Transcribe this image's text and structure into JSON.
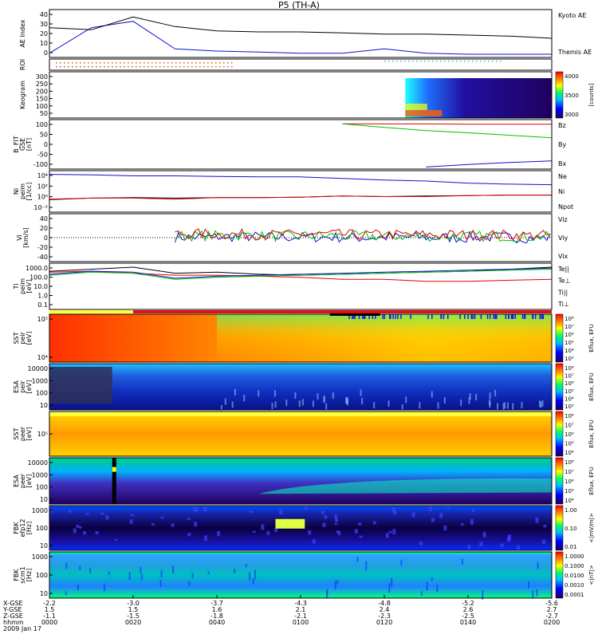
{
  "figure": {
    "title": "P5 (TH-A)",
    "date_label": "2009 Jan 17"
  },
  "colors": {
    "blue": "#1010d0",
    "red": "#e00000",
    "green": "#00c000",
    "black": "#000000"
  },
  "panels": [
    {
      "key": "ae",
      "ylabel": [
        "AE Index"
      ],
      "ticks": [
        "40",
        "30",
        "20",
        "10",
        "0"
      ],
      "yrange": [
        0,
        45
      ],
      "right_labels": [
        {
          "text": "Kyoto AE",
          "color": "#1010d0"
        },
        {
          "text": "Themis AE",
          "color": "#000000"
        }
      ]
    },
    {
      "key": "roi",
      "ylabel": [
        "ROI"
      ],
      "ticks": [],
      "right_labels": []
    },
    {
      "key": "keogram",
      "ylabel": [
        "Keogram"
      ],
      "ticks": [
        "300",
        "250",
        "200",
        "150",
        "100",
        "50"
      ],
      "yrange": [
        20,
        310
      ],
      "colorbar": {
        "ticks": [
          "4000",
          "3500",
          "3000"
        ],
        "label": "[counts]"
      }
    },
    {
      "key": "bfit",
      "ylabel": [
        "B_FIT",
        "GSE",
        "[nT]"
      ],
      "ticks": [
        "100",
        "50",
        "0",
        "-50",
        "-100"
      ],
      "yrange": [
        -120,
        120
      ],
      "right_labels": [
        {
          "text": "Bz",
          "color": "#e00000"
        },
        {
          "text": "By",
          "color": "#00c000"
        },
        {
          "text": "Bx",
          "color": "#1010d0"
        }
      ]
    },
    {
      "key": "ni",
      "ylabel": [
        "Ni",
        "peim",
        "[1/cc]"
      ],
      "ticks": [
        "10⁴",
        "10²",
        "10⁰",
        "10⁻²"
      ],
      "yrange": [
        -3,
        5
      ],
      "right_labels": [
        {
          "text": "Ne",
          "color": "#e00000"
        },
        {
          "text": "Ni",
          "color": "#000000"
        },
        {
          "text": "Npot",
          "color": "#1010d0"
        }
      ]
    },
    {
      "key": "vi",
      "ylabel": [
        "Vi",
        "[km/s]"
      ],
      "ticks": [
        "40",
        "20",
        "0",
        "-20",
        "-40"
      ],
      "yrange": [
        -50,
        50
      ],
      "right_labels": [
        {
          "text": "Viz",
          "color": "#e00000"
        },
        {
          "text": "Viy",
          "color": "#00c000"
        },
        {
          "text": "Vix",
          "color": "#1010d0"
        }
      ]
    },
    {
      "key": "ti",
      "ylabel": [
        "Ti",
        "peim",
        "[eV]"
      ],
      "ticks": [
        "1000.0",
        "100.0",
        "10.0",
        "1.0",
        "0.1"
      ],
      "yrange": [
        -1.2,
        3.4
      ],
      "right_labels": [
        {
          "text": "Te||",
          "color": "#000000"
        },
        {
          "text": "Te⊥",
          "color": "#e00000"
        },
        {
          "text": "Ti||",
          "color": "#00c000"
        },
        {
          "text": "Ti⊥",
          "color": "#1010d0"
        }
      ]
    },
    {
      "key": "sst1",
      "ylabel": [
        "SST",
        "peir",
        "[eV]"
      ],
      "ticks": [
        "10⁵",
        "10⁴"
      ],
      "colorbar": {
        "ticks": [
          "10⁸",
          "10⁷",
          "10⁶",
          "10⁵",
          "10⁴",
          "10³"
        ],
        "label": "Eflux, EFU"
      }
    },
    {
      "key": "esa1",
      "ylabel": [
        "ESA",
        "peir",
        "[eV]"
      ],
      "ticks": [
        "10000",
        "1000",
        "100",
        "10"
      ],
      "colorbar": {
        "ticks": [
          "10⁸",
          "10⁷",
          "10⁶",
          "10⁵",
          "10⁴",
          "10³"
        ],
        "label": "Eflux, EFU"
      }
    },
    {
      "key": "sst2",
      "ylabel": [
        "SST",
        "peer",
        "[eV]"
      ],
      "ticks": [
        "10⁵"
      ],
      "colorbar": {
        "ticks": [
          "10⁸",
          "10⁷",
          "10⁶",
          "10⁵",
          "10⁴"
        ],
        "label": "Eflux, EFU"
      }
    },
    {
      "key": "esa2",
      "ylabel": [
        "ESA",
        "peer",
        "[eV]"
      ],
      "ticks": [
        "10000",
        "1000",
        "100",
        "10"
      ],
      "colorbar": {
        "ticks": [
          "10⁸",
          "10⁷",
          "10⁶",
          "10⁵",
          "10⁴"
        ],
        "label": "Eflux, EFU"
      }
    },
    {
      "key": "fbk1",
      "ylabel": [
        "FBK",
        "efp12",
        "[Hz]"
      ],
      "ticks": [
        "1000",
        "100",
        "10"
      ],
      "colorbar": {
        "ticks": [
          "1.00",
          "0.10",
          "0.01"
        ],
        "label": "<|mV/m|>"
      }
    },
    {
      "key": "fbk2",
      "ylabel": [
        "FBK",
        "scm1",
        "[Hz]"
      ],
      "ticks": [
        "1000",
        "100",
        "10"
      ],
      "colorbar": {
        "ticks": [
          "1.0000",
          "0.1000",
          "0.0100",
          "0.0010",
          "0.0001"
        ],
        "label": "<|nT|>"
      }
    }
  ],
  "xaxis": {
    "row_labels": [
      "X-GSE",
      "Y-GSE",
      "Z-GSE",
      "hhmm"
    ],
    "columns": [
      {
        "vals": [
          "-2.2",
          "1.5",
          "-1.1",
          "0000"
        ]
      },
      {
        "vals": [
          "-3.0",
          "1.5",
          "-1.5",
          "0020"
        ]
      },
      {
        "vals": [
          "-3.7",
          "1.6",
          "-1.8",
          "0040"
        ]
      },
      {
        "vals": [
          "-4.3",
          "2.1",
          "-2.1",
          "0100"
        ]
      },
      {
        "vals": [
          "-4.8",
          "2.4",
          "-2.3",
          "0120"
        ]
      },
      {
        "vals": [
          "-5.2",
          "2.6",
          "-2.5",
          "0140"
        ]
      },
      {
        "vals": [
          "-5.6",
          "2.7",
          "-2.7",
          "0200"
        ]
      }
    ]
  },
  "chart_data": {
    "type": "line",
    "title": "P5 (TH-A)",
    "x": [
      0,
      10,
      20,
      30,
      40,
      50,
      60,
      70,
      80,
      90,
      100,
      110,
      120
    ],
    "x_tick_labels": [
      "0000",
      "0020",
      "0040",
      "0100",
      "0120",
      "0140",
      "0200"
    ],
    "series": [
      {
        "name": "Kyoto AE",
        "panel": "ae",
        "values": [
          4,
          28,
          34,
          8,
          6,
          5,
          4,
          4,
          8,
          4,
          3,
          3,
          3
        ]
      },
      {
        "name": "Themis AE",
        "panel": "ae",
        "values": [
          28,
          26,
          38,
          29,
          25,
          24,
          24,
          23,
          22,
          22,
          21,
          20,
          18
        ]
      },
      {
        "name": "Bz",
        "panel": "bfit",
        "values": [
          null,
          null,
          null,
          null,
          null,
          null,
          null,
          100,
          99,
          99,
          98,
          98,
          98
        ]
      },
      {
        "name": "By",
        "panel": "bfit",
        "values": [
          null,
          null,
          null,
          null,
          null,
          null,
          null,
          100,
          82,
          67,
          56,
          44,
          32
        ]
      },
      {
        "name": "Bx",
        "panel": "bfit",
        "values": [
          null,
          null,
          null,
          null,
          null,
          null,
          null,
          null,
          null,
          -110,
          -98,
          -88,
          -80
        ]
      },
      {
        "name": "Npot",
        "panel": "ni",
        "values": [
          4.3,
          4.2,
          4.0,
          4.0,
          3.9,
          3.8,
          3.8,
          3.5,
          3.2,
          3.0,
          2.6,
          2.4,
          2.3
        ]
      },
      {
        "name": "Ni",
        "panel": "ni",
        "values": [
          -0.6,
          -0.3,
          -0.2,
          -0.3,
          -0.2,
          -0.2,
          -0.1,
          0.1,
          0.0,
          0.1,
          0.2,
          0.3,
          0.3
        ]
      },
      {
        "name": "Ne",
        "panel": "ni",
        "values": [
          -0.5,
          -0.3,
          -0.3,
          -0.5,
          -0.2,
          -0.2,
          -0.1,
          0.1,
          0.0,
          0.0,
          0.2,
          0.3,
          0.3
        ]
      },
      {
        "name": "Viz",
        "panel": "vi",
        "values": [
          null,
          null,
          null,
          8,
          7,
          6,
          7,
          6,
          6,
          6,
          6,
          5,
          6
        ]
      },
      {
        "name": "Viy",
        "panel": "vi",
        "values": [
          null,
          null,
          null,
          4,
          5,
          3,
          4,
          3,
          3,
          3,
          3,
          2,
          3
        ]
      },
      {
        "name": "Vix",
        "panel": "vi",
        "values": [
          null,
          null,
          null,
          1,
          2,
          1,
          1,
          0,
          1,
          0,
          1,
          0,
          1
        ]
      },
      {
        "name": "Te||",
        "panel": "ti",
        "values": [
          2.6,
          2.8,
          3.0,
          2.4,
          2.5,
          2.3,
          2.2,
          2.3,
          2.4,
          2.5,
          2.6,
          2.8,
          3.0
        ]
      },
      {
        "name": "Te⊥",
        "panel": "ti",
        "values": [
          2.5,
          2.6,
          2.4,
          2.2,
          2.2,
          2.1,
          2.0,
          1.8,
          1.8,
          1.6,
          1.6,
          1.7,
          1.8
        ]
      },
      {
        "name": "Ti||",
        "panel": "ti",
        "values": [
          2.2,
          2.5,
          2.4,
          1.8,
          2.0,
          2.1,
          2.2,
          2.3,
          2.4,
          2.5,
          2.6,
          2.7,
          2.8
        ]
      },
      {
        "name": "Ti⊥",
        "panel": "ti",
        "values": [
          2.3,
          2.6,
          2.5,
          1.9,
          2.1,
          2.2,
          2.3,
          2.4,
          2.5,
          2.6,
          2.7,
          2.8,
          2.9
        ]
      }
    ],
    "ylim": {
      "ae": [
        0,
        45
      ],
      "bfit": [
        -120,
        120
      ],
      "ni": [
        -3,
        5
      ],
      "vi": [
        -50,
        50
      ],
      "ti": [
        -1.2,
        3.4
      ]
    },
    "grid": false,
    "legend": "right"
  }
}
